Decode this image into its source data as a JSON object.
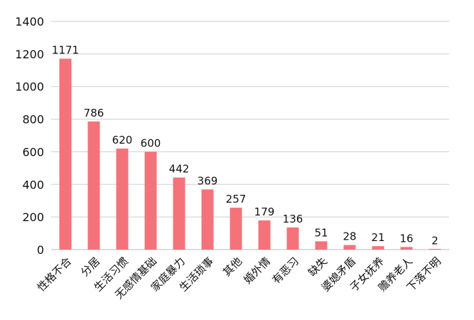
{
  "chart_data": {
    "type": "bar",
    "title": "",
    "xlabel": "",
    "ylabel": "",
    "categories": [
      "性格不合",
      "分居",
      "生活习惯",
      "无感情基础",
      "家庭暴力",
      "生活琐事",
      "其他",
      "婚外情",
      "有恶习",
      "缺失",
      "婆媳矛盾",
      "子女抚养",
      "赡养老人",
      "下落不明"
    ],
    "values": [
      1171,
      786,
      620,
      600,
      442,
      369,
      257,
      179,
      136,
      51,
      28,
      21,
      16,
      2
    ],
    "ylim": [
      0,
      1400
    ],
    "yticks": [
      0,
      200,
      400,
      600,
      800,
      1000,
      1200,
      1400
    ],
    "grid": true,
    "legend": "none",
    "bar_color": "#f4737a"
  }
}
